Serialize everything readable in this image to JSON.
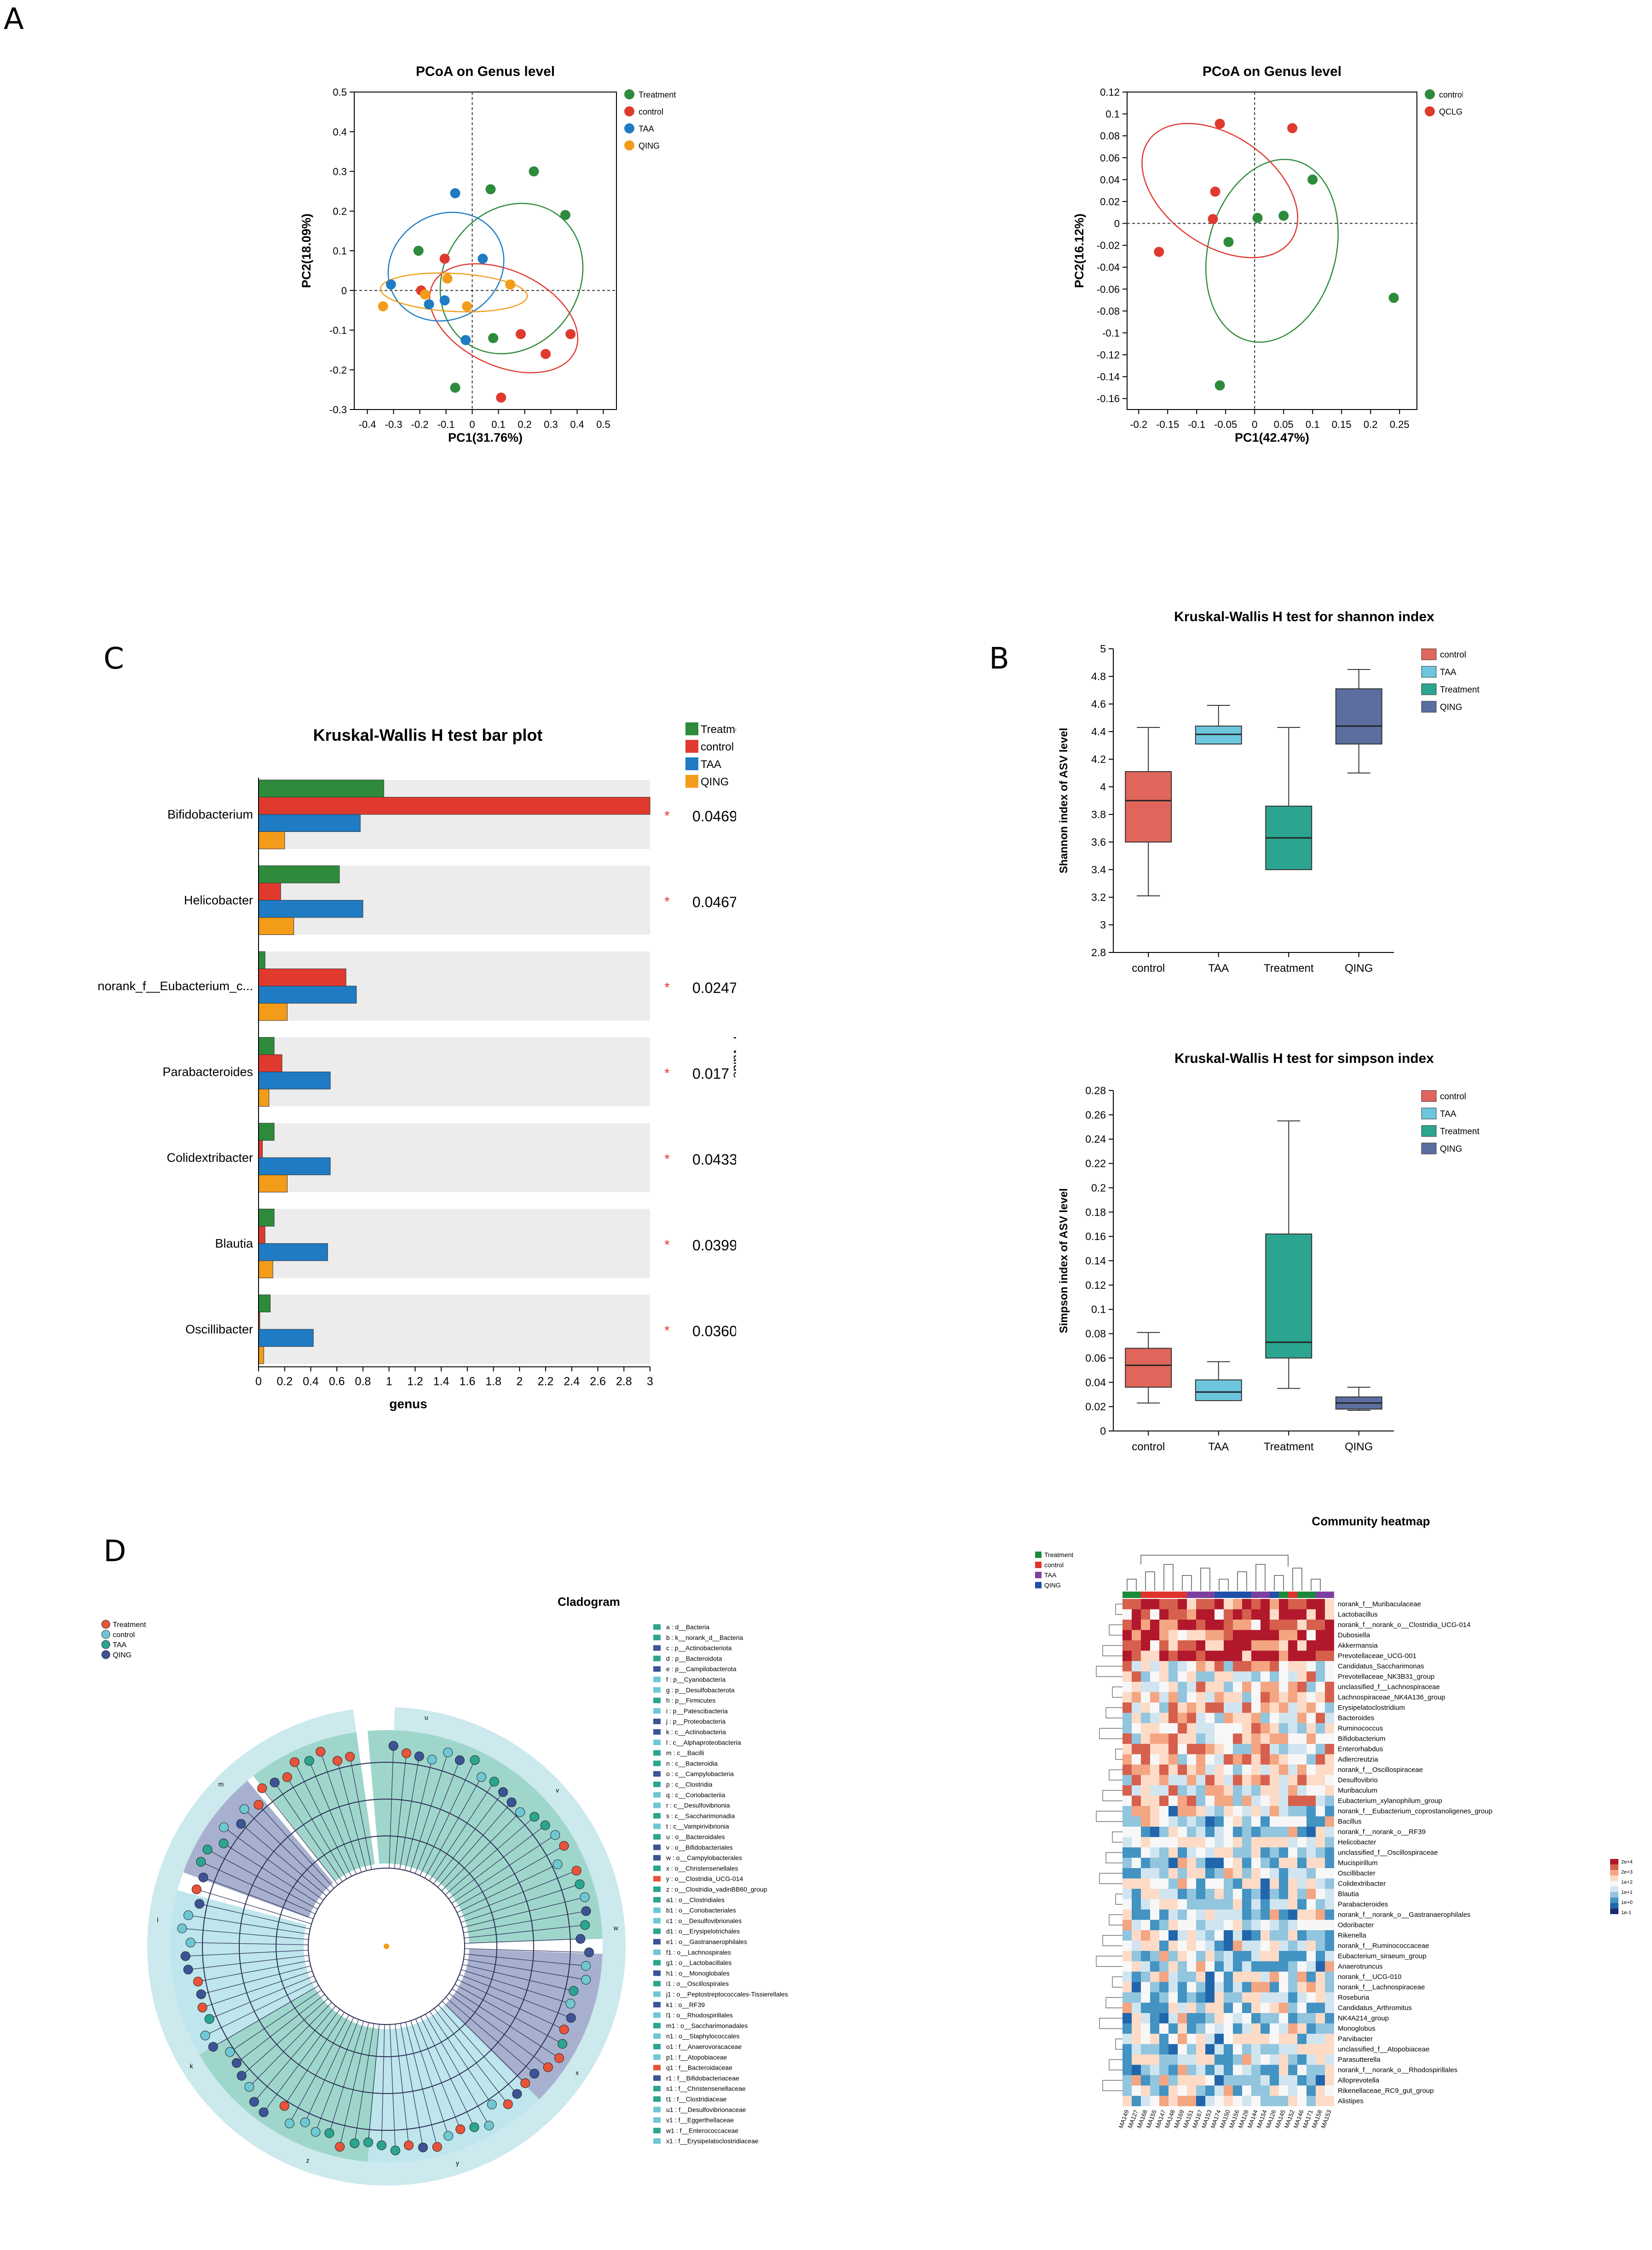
{
  "panel_labels": {
    "a": "A",
    "b": "B",
    "c": "C",
    "d": "D"
  },
  "colors": {
    "treatment": "#2e8b3c",
    "control": "#e03a2f",
    "taa": "#1f7bc4",
    "qing": "#f39c1a",
    "box_control": "#e0655a",
    "box_taa": "#6cc6dd",
    "box_treatment": "#2ba58f",
    "box_qing": "#5b6e9f"
  },
  "chart_data": [
    {
      "id": "pcoa1",
      "type": "scatter",
      "title": "PCoA on Genus level",
      "xlabel": "PC1(31.76%)",
      "ylabel": "PC2(18.09%)",
      "xlim": [
        -0.45,
        0.55
      ],
      "ylim": [
        -0.3,
        0.5
      ],
      "xticks": [
        -0.4,
        -0.3,
        -0.2,
        -0.1,
        0,
        0.1,
        0.2,
        0.3,
        0.4,
        0.5
      ],
      "yticks": [
        -0.3,
        -0.2,
        -0.1,
        0,
        0.1,
        0.2,
        0.3,
        0.4,
        0.5
      ],
      "legend": [
        "Treatment",
        "control",
        "TAA",
        "QING"
      ],
      "series": [
        {
          "name": "Treatment",
          "color": "#2e8b3c",
          "points": [
            [
              0.07,
              0.255
            ],
            [
              0.235,
              0.3
            ],
            [
              0.355,
              0.19
            ],
            [
              -0.205,
              0.1
            ],
            [
              0.08,
              -0.12
            ],
            [
              -0.065,
              -0.245
            ]
          ],
          "ellipse": {
            "cx": 0.15,
            "cy": 0.03,
            "rx": 0.3,
            "ry": 0.17,
            "angle": 55
          }
        },
        {
          "name": "control",
          "color": "#e03a2f",
          "points": [
            [
              -0.105,
              0.08
            ],
            [
              -0.195,
              0.0
            ],
            [
              0.185,
              -0.11
            ],
            [
              0.375,
              -0.11
            ],
            [
              0.28,
              -0.16
            ],
            [
              0.11,
              -0.27
            ]
          ],
          "ellipse": {
            "cx": 0.12,
            "cy": -0.07,
            "rx": 0.3,
            "ry": 0.12,
            "angle": -25
          }
        },
        {
          "name": "TAA",
          "color": "#1f7bc4",
          "points": [
            [
              -0.065,
              0.245
            ],
            [
              -0.31,
              0.015
            ],
            [
              0.04,
              0.08
            ],
            [
              -0.165,
              -0.035
            ],
            [
              -0.105,
              -0.025
            ],
            [
              -0.025,
              -0.125
            ]
          ],
          "ellipse": {
            "cx": -0.1,
            "cy": 0.06,
            "rx": 0.2,
            "ry": 0.15,
            "angle": -60
          }
        },
        {
          "name": "QING",
          "color": "#f39c1a",
          "points": [
            [
              -0.34,
              -0.04
            ],
            [
              -0.18,
              -0.01
            ],
            [
              -0.095,
              0.03
            ],
            [
              -0.02,
              -0.04
            ],
            [
              0.145,
              0.015
            ]
          ],
          "ellipse": {
            "cx": -0.07,
            "cy": -0.005,
            "rx": 0.28,
            "ry": 0.048,
            "angle": -3
          }
        }
      ]
    },
    {
      "id": "pcoa2",
      "type": "scatter",
      "title": "PCoA on Genus level",
      "xlabel": "PC1(42.47%)",
      "ylabel": "PC2(16.12%)",
      "xlim": [
        -0.22,
        0.28
      ],
      "ylim": [
        -0.17,
        0.12
      ],
      "xticks": [
        -0.2,
        -0.15,
        -0.1,
        -0.05,
        0,
        0.05,
        0.1,
        0.15,
        0.2,
        0.25
      ],
      "yticks": [
        -0.16,
        -0.14,
        -0.12,
        -0.1,
        -0.08,
        -0.06,
        -0.04,
        -0.02,
        0,
        0.02,
        0.04,
        0.06,
        0.08,
        0.1,
        0.12
      ],
      "legend": [
        "control",
        "QCLG"
      ],
      "series": [
        {
          "name": "control",
          "color": "#2e8b3c",
          "points": [
            [
              0.1,
              0.04
            ],
            [
              0.05,
              0.007
            ],
            [
              0.005,
              0.005
            ],
            [
              -0.045,
              -0.017
            ],
            [
              0.24,
              -0.068
            ],
            [
              -0.06,
              -0.148
            ]
          ],
          "ellipse": {
            "cx": 0.03,
            "cy": -0.025,
            "rx": 0.11,
            "ry": 0.085,
            "angle": -15
          }
        },
        {
          "name": "QCLG",
          "color": "#e03a2f",
          "points": [
            [
              -0.06,
              0.091
            ],
            [
              0.065,
              0.087
            ],
            [
              -0.068,
              0.029
            ],
            [
              -0.072,
              0.004
            ],
            [
              -0.165,
              -0.026
            ]
          ],
          "ellipse": {
            "cx": -0.06,
            "cy": 0.03,
            "rx": 0.15,
            "ry": 0.05,
            "angle": -35
          }
        }
      ]
    },
    {
      "id": "kw_bar",
      "type": "bar",
      "title": "Kruskal-Wallis H test bar plot",
      "xlabel": "genus",
      "ylabel": "P-value",
      "xlim": [
        0,
        3
      ],
      "xticks": [
        "0",
        "0.2",
        "0.4",
        "0.6",
        "0.8",
        "1",
        "1.2",
        "1.4",
        "1.6",
        "1.8",
        "2",
        "2.2",
        "2.4",
        "2.6",
        "2.8",
        "3"
      ],
      "legend": [
        "Treatment",
        "control",
        "TAA",
        "QING"
      ],
      "categories": [
        "Bifidobacterium",
        "Helicobacter",
        "norank_f__Eubacterium_c...",
        "Parabacteroides",
        "Colidextribacter",
        "Blautia",
        "Oscillibacter"
      ],
      "pvalues": [
        "0.04691",
        "0.04679",
        "0.0247",
        "0.017",
        "0.04335",
        "0.03997",
        "0.03602"
      ],
      "star": "*",
      "series": [
        {
          "name": "Treatment",
          "color": "#2e8b3c",
          "values": [
            0.96,
            0.62,
            0.05,
            0.12,
            0.12,
            0.12,
            0.09
          ]
        },
        {
          "name": "control",
          "color": "#e03a2f",
          "values": [
            3.0,
            0.17,
            0.67,
            0.18,
            0.03,
            0.05,
            0.01
          ]
        },
        {
          "name": "TAA",
          "color": "#1f7bc4",
          "values": [
            0.78,
            0.8,
            0.75,
            0.55,
            0.55,
            0.53,
            0.42
          ]
        },
        {
          "name": "QING",
          "color": "#f39c1a",
          "values": [
            0.2,
            0.27,
            0.22,
            0.08,
            0.22,
            0.11,
            0.04
          ]
        }
      ]
    },
    {
      "id": "shannon",
      "type": "box",
      "title": "Kruskal-Wallis H test for shannon index",
      "ylabel": "Shannon index of ASV level",
      "ylim": [
        2.8,
        5
      ],
      "yticks": [
        "2.8",
        "3",
        "3.2",
        "3.4",
        "3.6",
        "3.8",
        "4",
        "4.2",
        "4.4",
        "4.6",
        "4.8",
        "5"
      ],
      "categories": [
        "control",
        "TAA",
        "Treatment",
        "QING"
      ],
      "legend": [
        "control",
        "TAA",
        "Treatment",
        "QING"
      ],
      "boxes": [
        {
          "min": 3.21,
          "q1": 3.6,
          "median": 3.9,
          "q3": 4.11,
          "max": 4.43,
          "color": "#e0655a"
        },
        {
          "min": 4.31,
          "q1": 4.31,
          "median": 4.38,
          "q3": 4.44,
          "max": 4.59,
          "color": "#6cc6dd"
        },
        {
          "min": 3.4,
          "q1": 3.4,
          "median": 3.63,
          "q3": 3.86,
          "max": 4.43,
          "color": "#2ba58f"
        },
        {
          "min": 4.1,
          "q1": 4.31,
          "median": 4.44,
          "q3": 4.71,
          "max": 4.85,
          "color": "#5b6e9f"
        }
      ]
    },
    {
      "id": "simpson",
      "type": "box",
      "title": "Kruskal-Wallis H test for simpson index",
      "ylabel": "Simpson index of ASV level",
      "ylim": [
        0,
        0.28
      ],
      "yticks": [
        "0",
        "0.02",
        "0.04",
        "0.06",
        "0.08",
        "0.1",
        "0.12",
        "0.14",
        "0.16",
        "0.18",
        "0.2",
        "0.22",
        "0.24",
        "0.26",
        "0.28"
      ],
      "categories": [
        "control",
        "TAA",
        "Treatment",
        "QING"
      ],
      "legend": [
        "control",
        "TAA",
        "Treatment",
        "QING"
      ],
      "boxes": [
        {
          "min": 0.023,
          "q1": 0.036,
          "median": 0.054,
          "q3": 0.068,
          "max": 0.081,
          "color": "#e0655a"
        },
        {
          "min": 0.025,
          "q1": 0.025,
          "median": 0.032,
          "q3": 0.042,
          "max": 0.057,
          "color": "#6cc6dd"
        },
        {
          "min": 0.035,
          "q1": 0.06,
          "median": 0.073,
          "q3": 0.162,
          "max": 0.255,
          "color": "#2ba58f"
        },
        {
          "min": 0.017,
          "q1": 0.018,
          "median": 0.023,
          "q3": 0.028,
          "max": 0.036,
          "color": "#5b6e9f"
        }
      ]
    },
    {
      "id": "heatmap",
      "type": "heatmap",
      "title": "Community heatmap",
      "legend": [
        "Treatment",
        "control",
        "TAA",
        "QING"
      ],
      "scale_labels": [
        "2e+4",
        "2e+3",
        "1e+2",
        "1e+1",
        "1e+0",
        "1e-1"
      ],
      "rows": [
        "norank_f__Muribaculaceae",
        "Lactobacillus",
        "norank_f__norank_o__Clostridia_UCG-014",
        "Dubosiella",
        "Akkermansia",
        "Prevotellaceae_UCG-001",
        "Candidatus_Saccharimonas",
        "Prevotellaceae_NK3B31_group",
        "unclassified_f__Lachnospiraceae",
        "Lachnospiraceae_NK4A136_group",
        "Erysipelatoclostridium",
        "Bacteroides",
        "Ruminococcus",
        "Bifidobacterium",
        "Enterorhabdus",
        "Adlercreutzia",
        "norank_f__Oscillospiraceae",
        "Desulfovibrio",
        "Muribaculum",
        "Eubacterium_xylanophilum_group",
        "norank_f__Eubacterium_coprostanoligenes_group",
        "Bacillus",
        "norank_f__norank_o__RF39",
        "Helicobacter",
        "unclassified_f__Oscillospiraceae",
        "Mucispirillum",
        "Oscillibacter",
        "Colidextribacter",
        "Blautia",
        "Parabacteroides",
        "norank_f__norank_o__Gastranaerophilales",
        "Odoribacter",
        "Rikenella",
        "norank_f__Ruminococcaceae",
        "Eubacterium_siraeum_group",
        "Anaerotruncus",
        "norank_f__UCG-010",
        "norank_f__Lachnospiraceae",
        "Roseburia",
        "Candidatus_Arthromitus",
        "NK4A214_group",
        "Monoglobus",
        "Parvibacter",
        "unclassified_f__Atopobiaceae",
        "Parasutterella",
        "norank_f__norank_o__Rhodospirillales",
        "Alloprevotella",
        "Rikenellaceae_RC9_gut_group",
        "Alistipes"
      ],
      "columns": [
        "MA149",
        "MA127",
        "MA168",
        "MA155",
        "MA147",
        "MA148",
        "MA169",
        "MA151",
        "MA167",
        "MA153",
        "MA174",
        "MA150",
        "MA156",
        "MA128",
        "MA144",
        "MA154",
        "MA126",
        "MA145",
        "MA152",
        "MA146",
        "MA171",
        "MA158",
        "MA153"
      ],
      "col_groups": [
        "Treatment",
        "Treatment",
        "control",
        "control",
        "control",
        "control",
        "control",
        "TAA",
        "TAA",
        "TAA",
        "QING",
        "QING",
        "QING",
        "QING",
        "TAA",
        "TAA",
        "QING",
        "Treatment",
        "control",
        "Treatment",
        "Treatment",
        "TAA",
        "TAA"
      ]
    },
    {
      "id": "cladogram",
      "type": "cladogram",
      "title": "Cladogram",
      "legend": [
        "Treatment",
        "control",
        "TAA",
        "QING"
      ],
      "legend_colors": [
        "#e8533a",
        "#6fc7d4",
        "#2ba58f",
        "#3c5395"
      ],
      "taxa": [
        "a : d__Bacteria",
        "b : k__norank_d__Bacteria",
        "c : p__Actinobacteriota",
        "d : p__Bacteroidota",
        "e : p__Campilobacterota",
        "f : p__Cyanobacteria",
        "g : p__Desulfobacterota",
        "h : p__Firmicutes",
        "i : p__Patescibacteria",
        "j : p__Proteobacteria",
        "k : c__Actinobacteria",
        "l : c__Alphaproteobacteria",
        "m : c__Bacilli",
        "n : c__Bacteroidia",
        "o : c__Campylobacteria",
        "p : c__Clostridia",
        "q : c__Coriobacteriia",
        "r : c__Desulfovibrionia",
        "s : c__Saccharimonadia",
        "t : c__Vampirivibrionia",
        "u : o__Bacteroidales",
        "v : o__Bifidobacteriales",
        "w : o__Campylobacterales",
        "x : o__Christensenellales",
        "y : o__Clostridia_UCG-014",
        "z : o__Clostridia_vadinBB60_group",
        "a1 : o__Clostridiales",
        "b1 : o__Coriobacteriales",
        "c1 : o__Desulfovibrionales",
        "d1 : o__Erysipelotrichales",
        "e1 : o__Gastranaerophilales",
        "f1 : o__Lachnospirales",
        "g1 : o__Lactobacillales",
        "h1 : o__Monoglobales",
        "i1 : o__Oscillospirales",
        "j1 : o__Peptostreptococcales-Tissierellales",
        "k1 : o__RF39",
        "l1 : o__Rhodospirillales",
        "m1 : o__Saccharimonadales",
        "n1 : o__Staphylococcales",
        "o1 : f__Anaerovoracaceae",
        "p1 : f__Atopobiaceae",
        "q1 : f__Bacteroidaceae",
        "r1 : f__Bifidobacteriaceae",
        "s1 : f__Christensenellaceae",
        "t1 : f__Clostridiaceae",
        "u1 : f__Desulfovibrionaceae",
        "v1 : f__Eggerthellaceae",
        "w1 : f__Enterococcaceae",
        "x1 : f__Erysipelatoclostridiaceae"
      ],
      "taxa_colors": [
        "#2ba58f",
        "#2ba58f",
        "#3c5395",
        "#2ba58f",
        "#3c5395",
        "#6fc7d4",
        "#6fc7d4",
        "#2ba58f",
        "#6fc7d4",
        "#3c5395",
        "#3c5395",
        "#6fc7d4",
        "#2ba58f",
        "#2ba58f",
        "#3c5395",
        "#2ba58f",
        "#6fc7d4",
        "#6fc7d4",
        "#2ba58f",
        "#6fc7d4",
        "#2ba58f",
        "#3c5395",
        "#3c5395",
        "#2ba58f",
        "#e8533a",
        "#2ba58f",
        "#2ba58f",
        "#6fc7d4",
        "#6fc7d4",
        "#2ba58f",
        "#3c5395",
        "#6fc7d4",
        "#2ba58f",
        "#3c5395",
        "#2ba58f",
        "#6fc7d4",
        "#3c5395",
        "#6fc7d4",
        "#2ba58f",
        "#6fc7d4",
        "#2ba58f",
        "#6fc7d4",
        "#e8533a",
        "#3c5395",
        "#2ba58f",
        "#2ba58f",
        "#6fc7d4",
        "#6fc7d4",
        "#2ba58f",
        "#6fc7d4"
      ],
      "wedge_labels": [
        "u",
        "v",
        "w",
        "x",
        "y",
        "z",
        "k",
        "l",
        "m"
      ]
    }
  ]
}
